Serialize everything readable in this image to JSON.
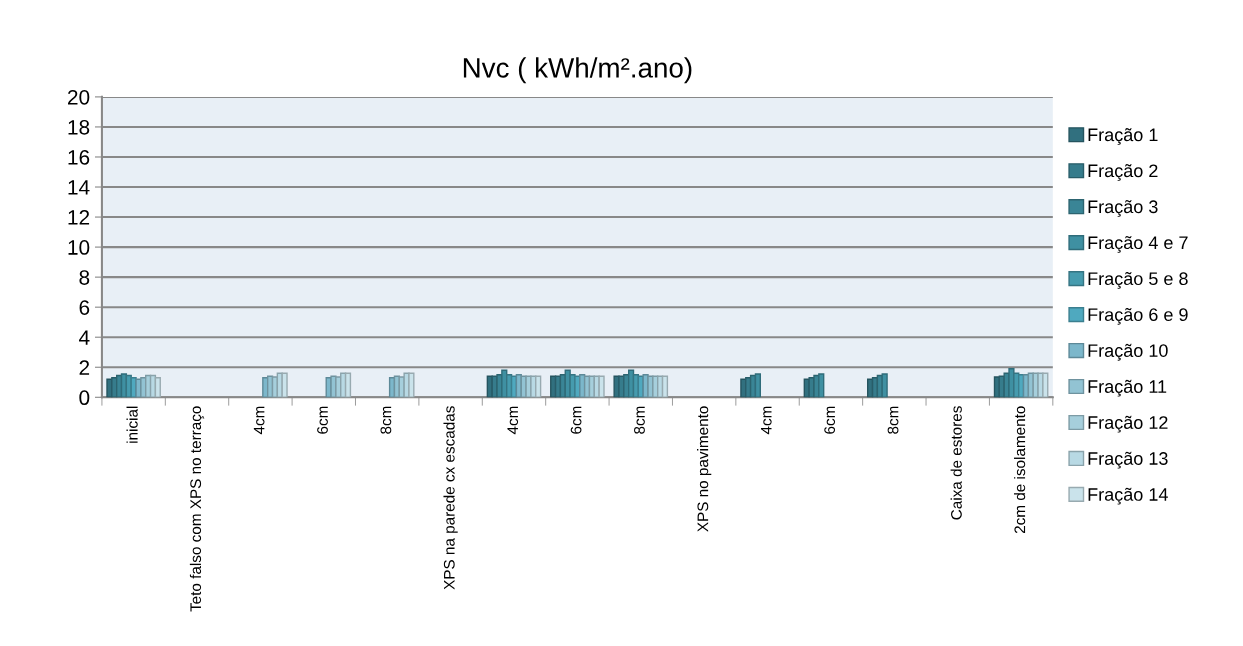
{
  "chart_data": {
    "type": "bar",
    "title": "Nvc ( kWh/m².ano)",
    "categories": [
      "inicial",
      "Teto falso com XPS no terraço",
      "4cm",
      "6cm",
      "8cm",
      "XPS na parede cx escadas",
      "4cm",
      "6cm",
      "8cm",
      "XPS no pavimento",
      "4cm",
      "6cm",
      "8cm",
      "Caixa de estores",
      "2cm de isolamento"
    ],
    "series": [
      {
        "name": "Fração 1",
        "color": "#31707f",
        "values": [
          1.2,
          null,
          null,
          null,
          null,
          null,
          1.4,
          1.4,
          1.4,
          null,
          1.2,
          1.2,
          1.2,
          null,
          1.35
        ]
      },
      {
        "name": "Fração 2",
        "color": "#367c8c",
        "values": [
          1.3,
          null,
          null,
          null,
          null,
          null,
          1.4,
          1.4,
          1.4,
          null,
          1.3,
          1.3,
          1.3,
          null,
          1.4
        ]
      },
      {
        "name": "Fração 3",
        "color": "#3a8596",
        "values": [
          1.45,
          null,
          null,
          null,
          null,
          null,
          1.5,
          1.5,
          1.5,
          null,
          1.45,
          1.45,
          1.45,
          null,
          1.6
        ]
      },
      {
        "name": "Fração 4 e 7",
        "color": "#3f90a2",
        "values": [
          1.55,
          null,
          null,
          null,
          null,
          null,
          1.8,
          1.8,
          1.8,
          null,
          1.55,
          1.55,
          1.55,
          null,
          1.9
        ]
      },
      {
        "name": "Fração 5 e 8",
        "color": "#469bae",
        "values": [
          1.45,
          null,
          null,
          null,
          null,
          null,
          1.5,
          1.5,
          1.5,
          null,
          null,
          null,
          null,
          null,
          1.6
        ]
      },
      {
        "name": "Fração 6 e 9",
        "color": "#4fa9bf",
        "values": [
          1.3,
          null,
          null,
          null,
          null,
          null,
          1.4,
          1.4,
          1.4,
          null,
          null,
          null,
          null,
          null,
          1.5
        ]
      },
      {
        "name": "Fração 10",
        "color": "#7cb7cb",
        "values": [
          1.2,
          null,
          1.3,
          1.3,
          1.3,
          null,
          1.5,
          1.5,
          1.5,
          null,
          null,
          null,
          null,
          null,
          1.5
        ]
      },
      {
        "name": "Fração 11",
        "color": "#92c3d3",
        "values": [
          1.3,
          null,
          1.4,
          1.4,
          1.4,
          null,
          1.4,
          1.4,
          1.4,
          null,
          null,
          null,
          null,
          null,
          1.6
        ]
      },
      {
        "name": "Fração 12",
        "color": "#a6cfdc",
        "values": [
          1.45,
          null,
          1.35,
          1.35,
          1.35,
          null,
          1.4,
          1.4,
          1.4,
          null,
          null,
          null,
          null,
          null,
          1.6
        ]
      },
      {
        "name": "Fração 13",
        "color": "#b8d9e4",
        "values": [
          1.45,
          null,
          1.6,
          1.6,
          1.6,
          null,
          1.4,
          1.4,
          1.4,
          null,
          null,
          null,
          null,
          null,
          1.6
        ]
      },
      {
        "name": "Fração 14",
        "color": "#cae3eb",
        "values": [
          1.3,
          null,
          1.6,
          1.6,
          1.6,
          null,
          1.4,
          1.4,
          1.4,
          null,
          null,
          null,
          null,
          null,
          1.6
        ]
      }
    ],
    "ylim": [
      0,
      20
    ],
    "yticks": [
      0,
      2,
      4,
      6,
      8,
      10,
      12,
      14,
      16,
      18,
      20
    ],
    "grid": "y",
    "legend": "right"
  }
}
